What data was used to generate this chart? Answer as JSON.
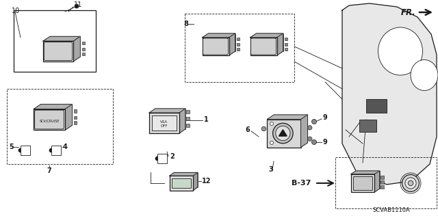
{
  "bg_color": "#ffffff",
  "fr_label": "FR.",
  "diagram_code": "SCVAB1110A",
  "b37_label": "B-37",
  "dark": "#1a1a1a",
  "gray_fill": "#d4d4d4",
  "light_fill": "#ebebeb",
  "white_fill": "#ffffff"
}
